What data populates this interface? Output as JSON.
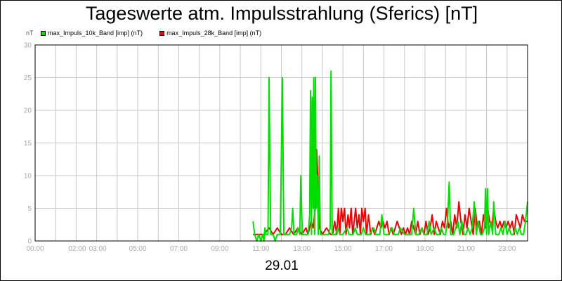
{
  "chart_data": {
    "type": "line",
    "title": "Tageswerte atm. Impulsstrahlung (Sferics) [nT]",
    "ylabel": "nT",
    "xlabel": "29.01",
    "ylim": [
      0,
      30
    ],
    "xlim": [
      0,
      24
    ],
    "y_ticks": [
      0,
      5,
      10,
      15,
      20,
      25,
      30
    ],
    "x_tick_labels": [
      {
        "x": 0,
        "label": "00:00"
      },
      {
        "x": 2.05,
        "label": "02:00"
      },
      {
        "x": 3.05,
        "label": "03:00"
      },
      {
        "x": 5,
        "label": "05:00"
      },
      {
        "x": 7,
        "label": "07:00"
      },
      {
        "x": 9,
        "label": "09:00"
      },
      {
        "x": 11,
        "label": "11:00"
      },
      {
        "x": 13,
        "label": "13:00"
      },
      {
        "x": 15,
        "label": "15:00"
      },
      {
        "x": 17,
        "label": "17:00"
      },
      {
        "x": 19,
        "label": "19:00"
      },
      {
        "x": 21,
        "label": "21:00"
      },
      {
        "x": 23,
        "label": "23:00"
      }
    ],
    "grid": true,
    "legend_position": "top-left",
    "series": [
      {
        "name": "max_Impuls_28k_Band [imp] (nT)",
        "color": "#ee0000",
        "points": [
          [
            10.62,
            1
          ],
          [
            11.1,
            1
          ],
          [
            11.15,
            1
          ],
          [
            11.4,
            2
          ],
          [
            11.6,
            1
          ],
          [
            11.8,
            2
          ],
          [
            12.0,
            1
          ],
          [
            12.2,
            1
          ],
          [
            12.4,
            2
          ],
          [
            12.6,
            1
          ],
          [
            12.8,
            2
          ],
          [
            13.0,
            1
          ],
          [
            13.2,
            2
          ],
          [
            13.3,
            1
          ],
          [
            13.45,
            3
          ],
          [
            13.55,
            2
          ],
          [
            13.65,
            5
          ],
          [
            13.72,
            14
          ],
          [
            13.78,
            9
          ],
          [
            13.85,
            2
          ],
          [
            14.0,
            1
          ],
          [
            14.2,
            2
          ],
          [
            14.4,
            1
          ],
          [
            14.5,
            1
          ],
          [
            14.6,
            3
          ],
          [
            14.7,
            1
          ],
          [
            14.78,
            5
          ],
          [
            14.85,
            1
          ],
          [
            14.92,
            5
          ],
          [
            15.0,
            3
          ],
          [
            15.08,
            5
          ],
          [
            15.15,
            1
          ],
          [
            15.25,
            4
          ],
          [
            15.32,
            2
          ],
          [
            15.4,
            5
          ],
          [
            15.48,
            1
          ],
          [
            15.55,
            3
          ],
          [
            15.62,
            5
          ],
          [
            15.7,
            2
          ],
          [
            15.78,
            4
          ],
          [
            15.85,
            1
          ],
          [
            15.92,
            5
          ],
          [
            16.0,
            3
          ],
          [
            16.08,
            5
          ],
          [
            16.15,
            1
          ],
          [
            16.25,
            4
          ],
          [
            16.35,
            1
          ],
          [
            16.45,
            2
          ],
          [
            16.55,
            1
          ],
          [
            16.65,
            2
          ],
          [
            16.75,
            3
          ],
          [
            16.85,
            2
          ],
          [
            16.95,
            3
          ],
          [
            17.05,
            2
          ],
          [
            17.15,
            3
          ],
          [
            17.25,
            1
          ],
          [
            17.35,
            2
          ],
          [
            17.45,
            1
          ],
          [
            17.55,
            2
          ],
          [
            17.65,
            3
          ],
          [
            17.75,
            2
          ],
          [
            17.85,
            1
          ],
          [
            17.95,
            2
          ],
          [
            18.05,
            1
          ],
          [
            18.15,
            2
          ],
          [
            18.25,
            1
          ],
          [
            18.35,
            3
          ],
          [
            18.45,
            2
          ],
          [
            18.55,
            1
          ],
          [
            18.65,
            3
          ],
          [
            18.75,
            1
          ],
          [
            18.85,
            2
          ],
          [
            18.95,
            1
          ],
          [
            19.05,
            3
          ],
          [
            19.15,
            1
          ],
          [
            19.25,
            2
          ],
          [
            19.35,
            4
          ],
          [
            19.45,
            1
          ],
          [
            19.55,
            3
          ],
          [
            19.65,
            2
          ],
          [
            19.75,
            1
          ],
          [
            19.85,
            3
          ],
          [
            19.95,
            2
          ],
          [
            20.05,
            5
          ],
          [
            20.15,
            2
          ],
          [
            20.25,
            3
          ],
          [
            20.35,
            1
          ],
          [
            20.45,
            4
          ],
          [
            20.55,
            2
          ],
          [
            20.65,
            6
          ],
          [
            20.75,
            3
          ],
          [
            20.85,
            1
          ],
          [
            20.95,
            4
          ],
          [
            21.05,
            2
          ],
          [
            21.15,
            5
          ],
          [
            21.25,
            3
          ],
          [
            21.35,
            1
          ],
          [
            21.45,
            5
          ],
          [
            21.55,
            2
          ],
          [
            21.65,
            3
          ],
          [
            21.75,
            1
          ],
          [
            21.85,
            4
          ],
          [
            21.95,
            2
          ],
          [
            22.05,
            5
          ],
          [
            22.15,
            3
          ],
          [
            22.25,
            2
          ],
          [
            22.35,
            5
          ],
          [
            22.45,
            3
          ],
          [
            22.55,
            2
          ],
          [
            22.65,
            3
          ],
          [
            22.75,
            2
          ],
          [
            22.85,
            3
          ],
          [
            22.95,
            2
          ],
          [
            23.05,
            3
          ],
          [
            23.15,
            2
          ],
          [
            23.25,
            3
          ],
          [
            23.35,
            1
          ],
          [
            23.45,
            4
          ],
          [
            23.55,
            3
          ],
          [
            23.65,
            2
          ],
          [
            23.75,
            4
          ],
          [
            23.85,
            3
          ],
          [
            24.0,
            3
          ]
        ]
      },
      {
        "name": "max_Impuls_10k_Band [imp] (nT)",
        "color": "#00dd00",
        "points": [
          [
            10.62,
            3
          ],
          [
            10.7,
            1
          ],
          [
            10.8,
            0
          ],
          [
            10.9,
            1
          ],
          [
            11.0,
            0
          ],
          [
            11.1,
            1
          ],
          [
            11.15,
            0
          ],
          [
            11.2,
            2
          ],
          [
            11.25,
            1
          ],
          [
            11.35,
            1
          ],
          [
            11.4,
            25
          ],
          [
            11.48,
            1
          ],
          [
            11.6,
            1
          ],
          [
            11.7,
            0
          ],
          [
            11.8,
            1
          ],
          [
            11.95,
            1
          ],
          [
            12.05,
            25
          ],
          [
            12.12,
            1
          ],
          [
            12.2,
            1
          ],
          [
            12.4,
            1
          ],
          [
            12.5,
            2
          ],
          [
            12.55,
            5
          ],
          [
            12.62,
            1
          ],
          [
            12.75,
            1
          ],
          [
            12.8,
            2
          ],
          [
            12.9,
            1
          ],
          [
            12.95,
            10
          ],
          [
            13.02,
            1
          ],
          [
            13.2,
            1
          ],
          [
            13.3,
            1
          ],
          [
            13.38,
            4
          ],
          [
            13.42,
            23
          ],
          [
            13.47,
            1
          ],
          [
            13.5,
            22
          ],
          [
            13.55,
            5
          ],
          [
            13.58,
            25
          ],
          [
            13.62,
            1
          ],
          [
            13.66,
            25
          ],
          [
            13.7,
            5
          ],
          [
            13.75,
            10
          ],
          [
            13.8,
            1
          ],
          [
            13.85,
            13
          ],
          [
            13.9,
            1
          ],
          [
            14.0,
            1
          ],
          [
            14.1,
            1
          ],
          [
            14.2,
            1
          ],
          [
            14.3,
            1
          ],
          [
            14.38,
            2
          ],
          [
            14.42,
            26
          ],
          [
            14.48,
            1
          ],
          [
            14.55,
            1
          ],
          [
            14.65,
            1
          ],
          [
            14.75,
            2
          ],
          [
            14.85,
            1
          ],
          [
            15.0,
            1
          ],
          [
            15.2,
            2
          ],
          [
            15.3,
            1
          ],
          [
            15.5,
            1
          ],
          [
            15.6,
            2
          ],
          [
            15.7,
            1
          ],
          [
            15.9,
            1
          ],
          [
            16.0,
            2
          ],
          [
            16.1,
            1
          ],
          [
            16.3,
            1
          ],
          [
            16.5,
            2
          ],
          [
            16.6,
            1
          ],
          [
            16.8,
            1
          ],
          [
            16.9,
            4
          ],
          [
            17.0,
            1
          ],
          [
            17.2,
            1
          ],
          [
            17.4,
            2
          ],
          [
            17.5,
            1
          ],
          [
            17.7,
            1
          ],
          [
            17.8,
            2
          ],
          [
            18.0,
            1
          ],
          [
            18.2,
            1
          ],
          [
            18.35,
            1
          ],
          [
            18.45,
            5
          ],
          [
            18.55,
            1
          ],
          [
            18.7,
            1
          ],
          [
            18.85,
            2
          ],
          [
            18.95,
            1
          ],
          [
            19.1,
            1
          ],
          [
            19.2,
            3
          ],
          [
            19.3,
            1
          ],
          [
            19.45,
            2
          ],
          [
            19.55,
            1
          ],
          [
            19.7,
            1
          ],
          [
            19.8,
            2
          ],
          [
            19.9,
            1
          ],
          [
            20.0,
            1
          ],
          [
            20.1,
            3
          ],
          [
            20.18,
            9
          ],
          [
            20.25,
            1
          ],
          [
            20.4,
            1
          ],
          [
            20.5,
            2
          ],
          [
            20.6,
            3
          ],
          [
            20.7,
            1
          ],
          [
            20.8,
            3
          ],
          [
            20.9,
            1
          ],
          [
            21.0,
            1
          ],
          [
            21.1,
            2
          ],
          [
            21.2,
            1
          ],
          [
            21.3,
            2
          ],
          [
            21.4,
            6
          ],
          [
            21.5,
            1
          ],
          [
            21.6,
            3
          ],
          [
            21.7,
            1
          ],
          [
            21.8,
            1
          ],
          [
            21.9,
            2
          ],
          [
            21.95,
            8
          ],
          [
            22.0,
            1
          ],
          [
            22.05,
            8
          ],
          [
            22.1,
            1
          ],
          [
            22.2,
            3
          ],
          [
            22.3,
            1
          ],
          [
            22.35,
            6
          ],
          [
            22.45,
            1
          ],
          [
            22.6,
            1
          ],
          [
            22.7,
            2
          ],
          [
            22.8,
            1
          ],
          [
            22.9,
            3
          ],
          [
            23.0,
            1
          ],
          [
            23.1,
            2
          ],
          [
            23.2,
            1
          ],
          [
            23.3,
            1
          ],
          [
            23.4,
            2
          ],
          [
            23.5,
            1
          ],
          [
            23.6,
            2
          ],
          [
            23.7,
            1
          ],
          [
            23.8,
            1
          ],
          [
            23.9,
            3
          ],
          [
            24.0,
            6
          ]
        ]
      }
    ]
  },
  "legend": [
    {
      "label": "max_Impuls_10k_Band [imp] (nT)",
      "color": "#00dd00"
    },
    {
      "label": "max_Impuls_28k_Band [imp] (nT)",
      "color": "#ee0000"
    }
  ],
  "colors": {
    "grid": "#c8c8c8",
    "axis": "#000000",
    "tick_text": "#aaaaaa"
  }
}
